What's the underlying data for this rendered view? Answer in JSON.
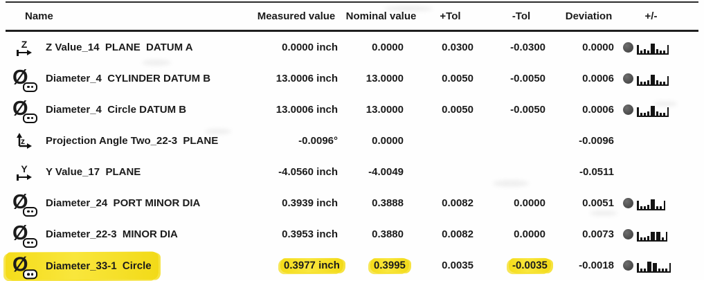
{
  "table": {
    "columns": {
      "name": "Name",
      "measured": "Measured value",
      "nominal": "Nominal value",
      "plus_tol": "+Tol",
      "minus_tol": "-Tol",
      "deviation": "Deviation",
      "plus_minus": "+/-"
    },
    "rows": [
      {
        "icon": "z-axis",
        "axis_letter": "Z",
        "name": "Z Value_14  PLANE  DATUM A",
        "measured": "0.0000 inch",
        "nominal": "0.0000",
        "plus_tol": "0.0300",
        "minus_tol": "-0.0300",
        "deviation": "0.0000",
        "indicator": true,
        "histogram": [
          2,
          3,
          2,
          8,
          3,
          2,
          2
        ],
        "highlight": []
      },
      {
        "icon": "diameter",
        "axis_letter": "",
        "name": "Diameter_4  CYLINDER DATUM B",
        "measured": "13.0006 inch",
        "nominal": "13.0000",
        "plus_tol": "0.0050",
        "minus_tol": "-0.0050",
        "deviation": "0.0006",
        "indicator": true,
        "histogram": [
          2,
          2,
          3,
          8,
          3,
          2,
          2
        ],
        "highlight": []
      },
      {
        "icon": "diameter",
        "axis_letter": "",
        "name": "Diameter_4  Circle DATUM B",
        "measured": "13.0006 inch",
        "nominal": "13.0000",
        "plus_tol": "0.0050",
        "minus_tol": "-0.0050",
        "deviation": "0.0006",
        "indicator": true,
        "histogram": [
          2,
          2,
          3,
          8,
          3,
          2,
          2
        ],
        "highlight": []
      },
      {
        "icon": "projection-angle",
        "axis_letter": "",
        "name": "Projection Angle Two_22-3  PLANE",
        "measured": "-0.0096°",
        "nominal": "0.0000",
        "plus_tol": "",
        "minus_tol": "",
        "deviation": "-0.0096",
        "indicator": false,
        "histogram": [],
        "highlight": []
      },
      {
        "icon": "y-axis",
        "axis_letter": "Y",
        "name": "Y Value_17  PLANE",
        "measured": "-4.0560 inch",
        "nominal": "-4.0049",
        "plus_tol": "",
        "minus_tol": "",
        "deviation": "-0.0511",
        "indicator": false,
        "histogram": [],
        "highlight": []
      },
      {
        "icon": "diameter",
        "axis_letter": "",
        "name": "Diameter_24  PORT MINOR DIA",
        "measured": "0.3939 inch",
        "nominal": "0.3888",
        "plus_tol": "0.0082",
        "minus_tol": "0.0000",
        "deviation": "0.0051",
        "indicator": true,
        "histogram": [
          2,
          2,
          3,
          8,
          2,
          2
        ],
        "highlight": []
      },
      {
        "icon": "diameter",
        "axis_letter": "",
        "name": "Diameter_22-3  MINOR DIA",
        "measured": "0.3953 inch",
        "nominal": "0.3880",
        "plus_tol": "0.0082",
        "minus_tol": "0.0000",
        "deviation": "0.0073",
        "indicator": true,
        "histogram": [
          2,
          2,
          3,
          7,
          7,
          2
        ],
        "highlight": []
      },
      {
        "icon": "diameter",
        "axis_letter": "",
        "name": "Diameter_33-1  Circle",
        "measured": "0.3977 inch",
        "nominal": "0.3995",
        "plus_tol": "0.0035",
        "minus_tol": "-0.0035",
        "deviation": "-0.0018",
        "indicator": true,
        "histogram": [
          2,
          2,
          8,
          7,
          2,
          2,
          2
        ],
        "highlight": [
          "name",
          "measured",
          "nominal",
          "minus_tol"
        ]
      }
    ]
  },
  "colors": {
    "highlighter": "#f6df1f",
    "indicator_dot": "#555555",
    "text": "#1b1b1b",
    "rule": "#1f1f1f"
  }
}
